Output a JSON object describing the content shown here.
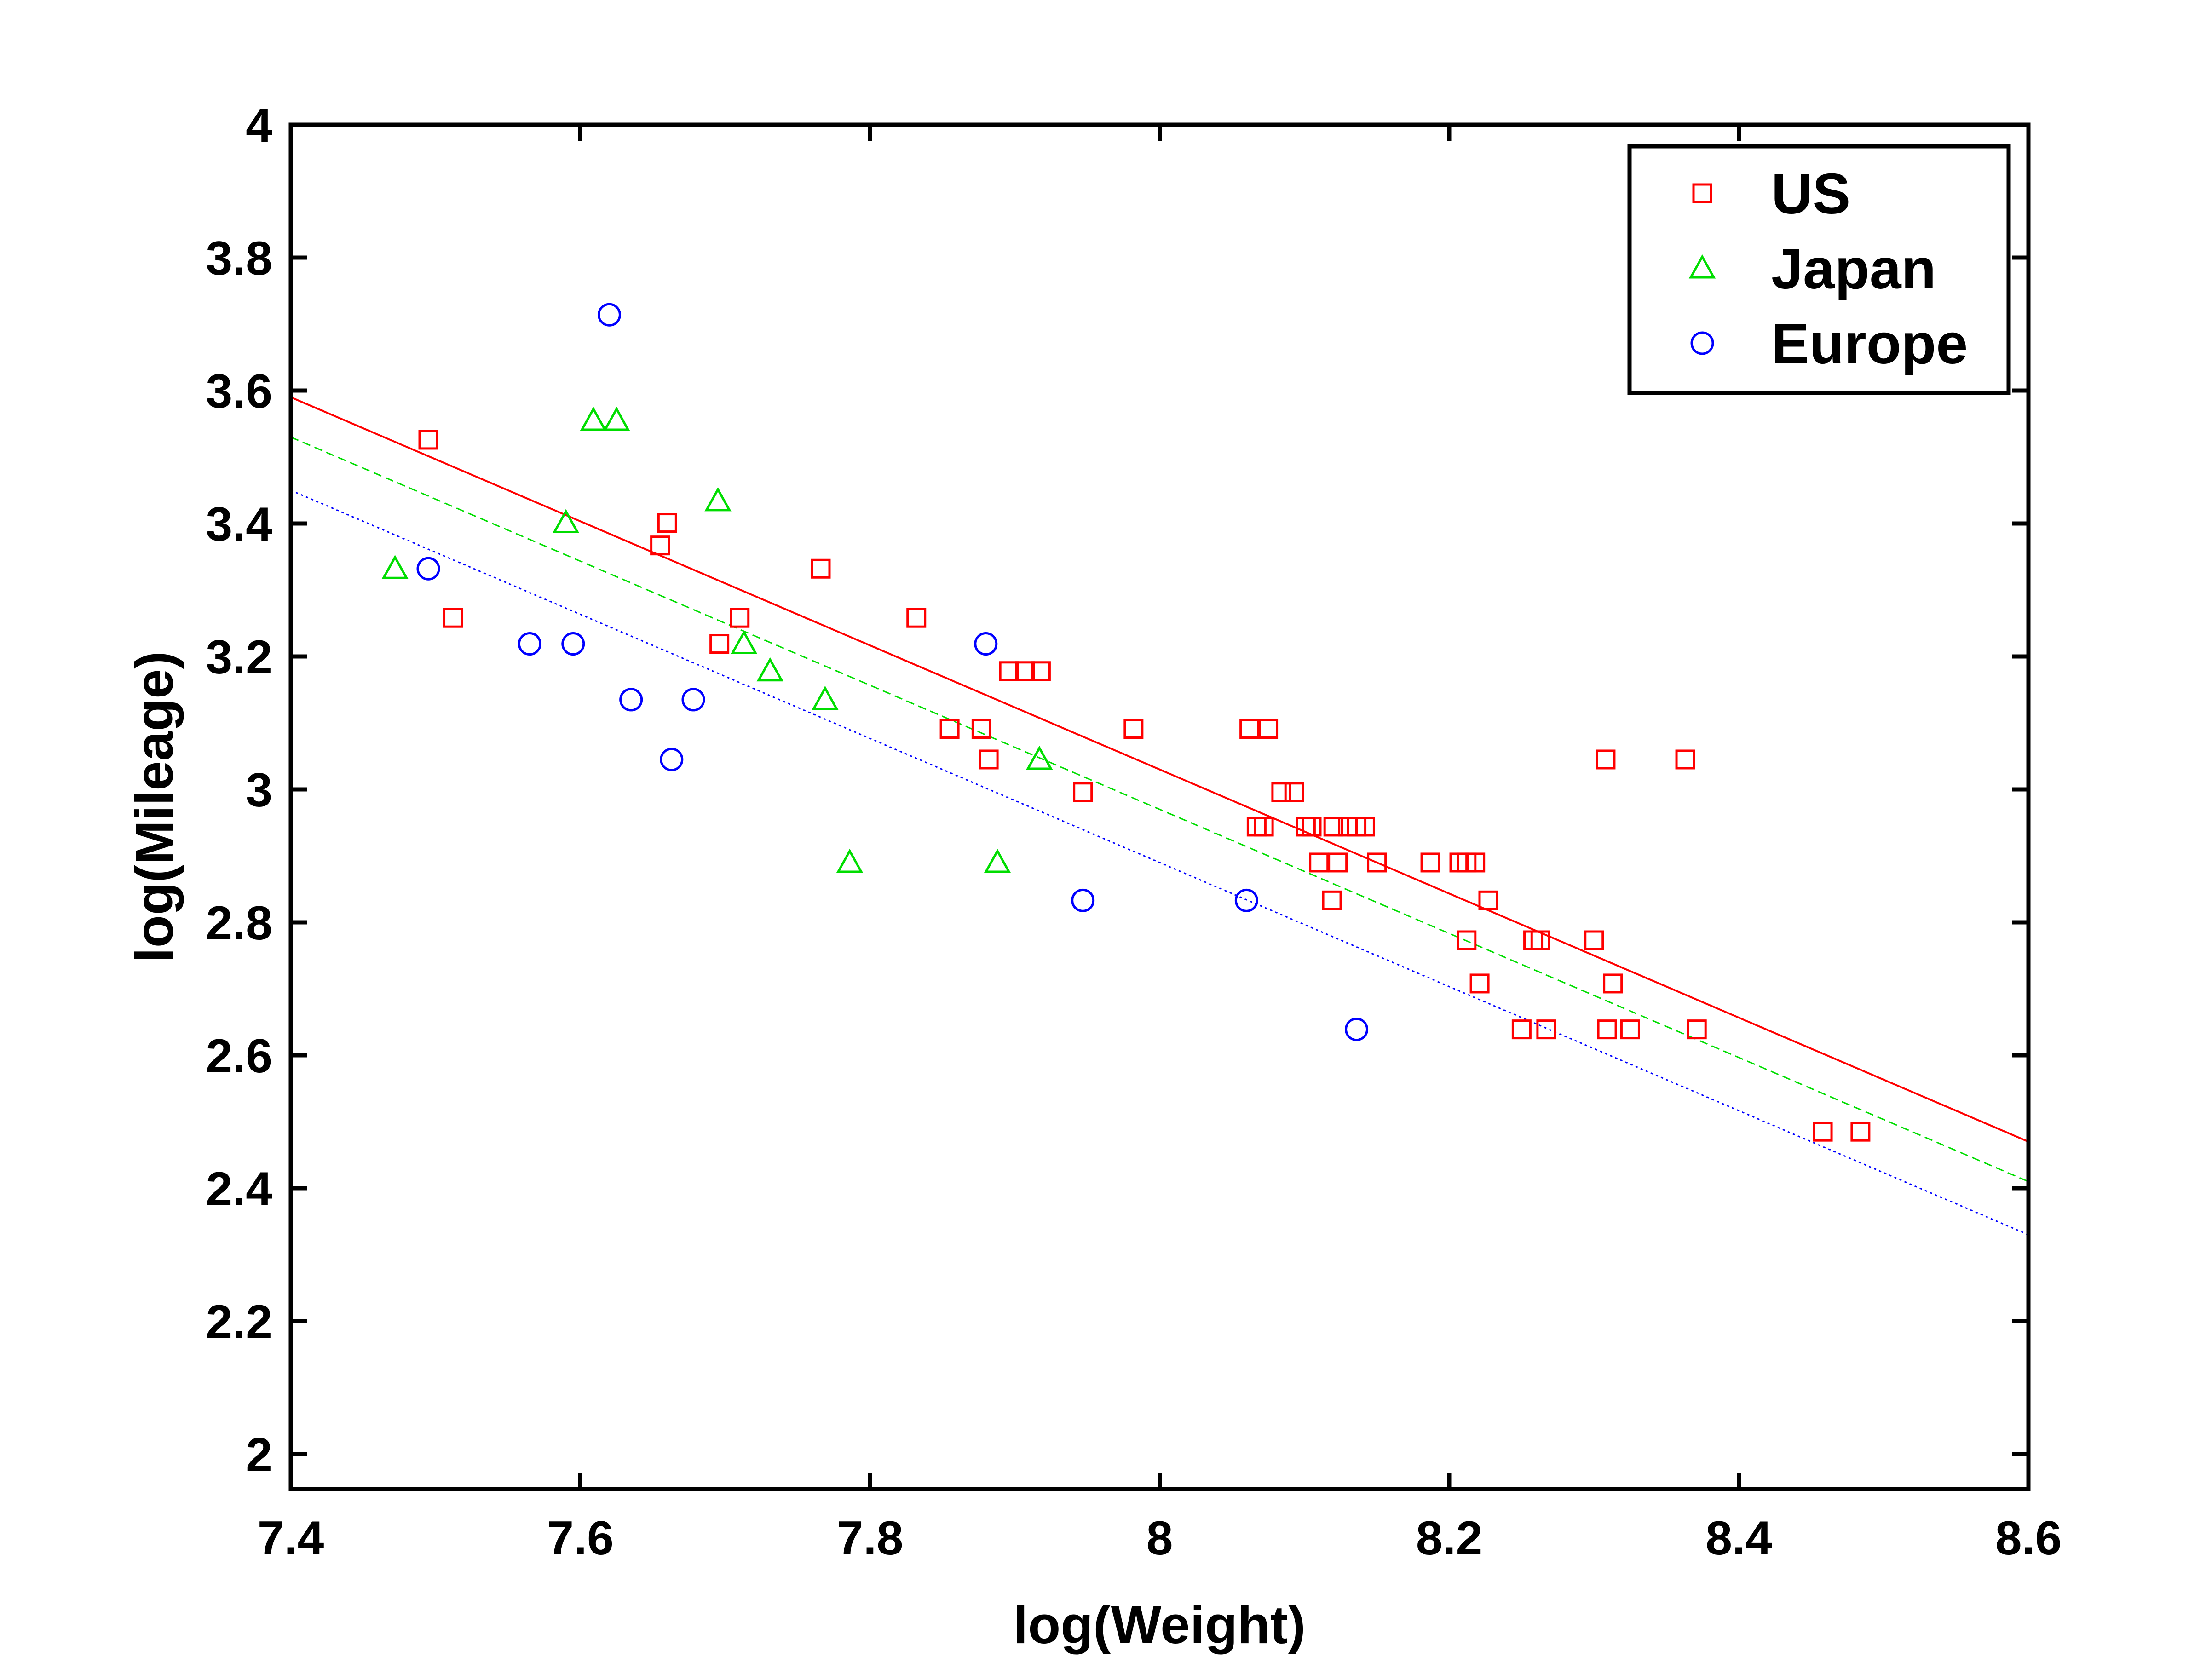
{
  "chart_data": {
    "type": "scatter",
    "xlabel": "log(Weight)",
    "ylabel": "log(Mileage)",
    "xlim": [
      7.4,
      8.6
    ],
    "ylim": [
      1.95,
      4.0
    ],
    "xticks": [
      7.4,
      7.6,
      7.8,
      8.0,
      8.2,
      8.4,
      8.6
    ],
    "xtick_labels": [
      "7.4",
      "7.6",
      "7.8",
      "8",
      "8.2",
      "8.4",
      "8.6"
    ],
    "yticks": [
      2.0,
      2.2,
      2.4,
      2.6,
      2.8,
      3.0,
      3.2,
      3.4,
      3.6,
      3.8,
      4.0
    ],
    "ytick_labels": [
      "2",
      "2.2",
      "2.4",
      "2.6",
      "2.8",
      "3",
      "3.2",
      "3.4",
      "3.6",
      "3.8",
      "4"
    ],
    "grid": false,
    "legend_position": "top-right",
    "series": [
      {
        "name": "US",
        "marker": "square",
        "color": "#ff0000",
        "line_style": "solid",
        "fit_line": [
          [
            7.4,
            3.59
          ],
          [
            8.6,
            2.47
          ]
        ],
        "points": [
          [
            7.495,
            3.526
          ],
          [
            7.512,
            3.258
          ],
          [
            7.655,
            3.367
          ],
          [
            7.66,
            3.401
          ],
          [
            7.696,
            3.219
          ],
          [
            7.71,
            3.258
          ],
          [
            7.766,
            3.332
          ],
          [
            7.832,
            3.258
          ],
          [
            7.855,
            3.091
          ],
          [
            7.877,
            3.091
          ],
          [
            7.882,
            3.045
          ],
          [
            7.896,
            3.178
          ],
          [
            7.907,
            3.178
          ],
          [
            7.918,
            3.178
          ],
          [
            7.947,
            2.996
          ],
          [
            7.982,
            3.091
          ],
          [
            8.062,
            3.091
          ],
          [
            8.075,
            3.091
          ],
          [
            8.067,
            2.944
          ],
          [
            8.072,
            2.944
          ],
          [
            8.084,
            2.996
          ],
          [
            8.093,
            2.996
          ],
          [
            8.101,
            2.944
          ],
          [
            8.105,
            2.944
          ],
          [
            8.11,
            2.89
          ],
          [
            8.119,
            2.833
          ],
          [
            8.12,
            2.944
          ],
          [
            8.123,
            2.89
          ],
          [
            8.13,
            2.944
          ],
          [
            8.136,
            2.944
          ],
          [
            8.142,
            2.944
          ],
          [
            8.15,
            2.89
          ],
          [
            8.187,
            2.89
          ],
          [
            8.207,
            2.89
          ],
          [
            8.212,
            2.89
          ],
          [
            8.218,
            2.89
          ],
          [
            8.212,
            2.773
          ],
          [
            8.221,
            2.708
          ],
          [
            8.227,
            2.833
          ],
          [
            8.25,
            2.639
          ],
          [
            8.258,
            2.773
          ],
          [
            8.263,
            2.773
          ],
          [
            8.267,
            2.639
          ],
          [
            8.3,
            2.773
          ],
          [
            8.309,
            2.639
          ],
          [
            8.313,
            2.708
          ],
          [
            8.308,
            3.045
          ],
          [
            8.325,
            2.639
          ],
          [
            8.363,
            3.045
          ],
          [
            8.371,
            2.639
          ],
          [
            8.458,
            2.485
          ],
          [
            8.484,
            2.485
          ]
        ]
      },
      {
        "name": "Japan",
        "marker": "triangle",
        "color": "#00dd00",
        "line_style": "dashed",
        "fit_line": [
          [
            7.4,
            3.53
          ],
          [
            8.6,
            2.41
          ]
        ],
        "points": [
          [
            7.472,
            3.332
          ],
          [
            7.59,
            3.401
          ],
          [
            7.609,
            3.555
          ],
          [
            7.625,
            3.555
          ],
          [
            7.695,
            3.434
          ],
          [
            7.713,
            3.219
          ],
          [
            7.731,
            3.178
          ],
          [
            7.769,
            3.135
          ],
          [
            7.786,
            2.89
          ],
          [
            7.888,
            2.89
          ],
          [
            7.917,
            3.045
          ]
        ]
      },
      {
        "name": "Europe",
        "marker": "circle",
        "color": "#0000ff",
        "line_style": "dotted",
        "fit_line": [
          [
            7.4,
            3.45
          ],
          [
            8.6,
            2.33
          ]
        ],
        "points": [
          [
            7.495,
            3.332
          ],
          [
            7.565,
            3.219
          ],
          [
            7.595,
            3.219
          ],
          [
            7.62,
            3.714
          ],
          [
            7.635,
            3.135
          ],
          [
            7.663,
            3.045
          ],
          [
            7.678,
            3.135
          ],
          [
            7.88,
            3.219
          ],
          [
            7.947,
            2.833
          ],
          [
            8.06,
            2.833
          ],
          [
            8.136,
            2.639
          ]
        ]
      }
    ]
  }
}
